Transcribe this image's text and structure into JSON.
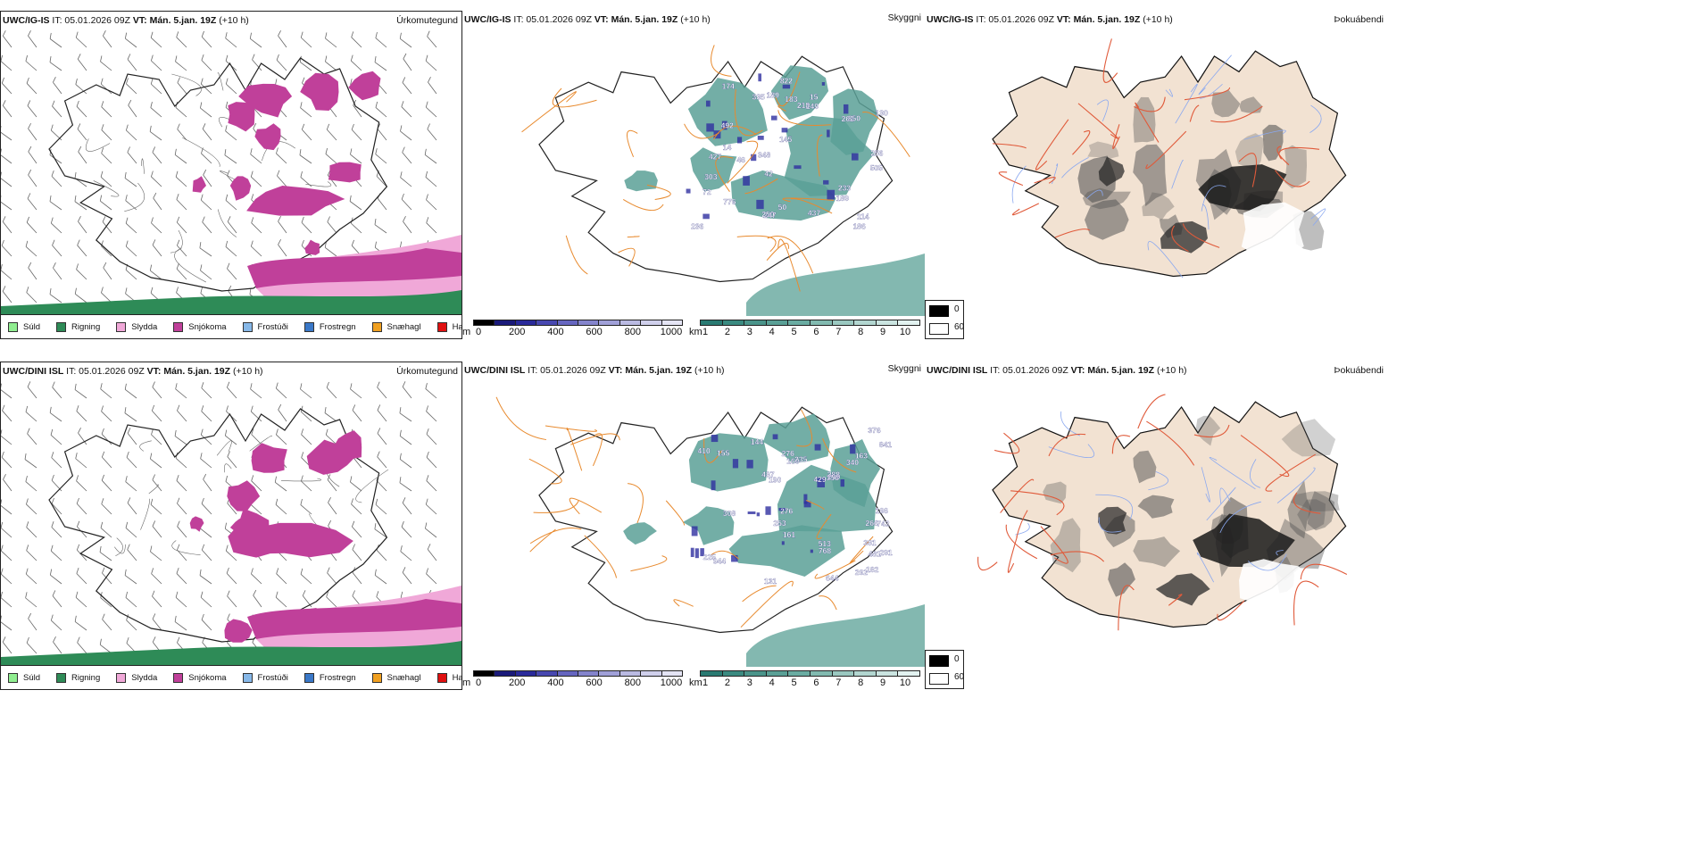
{
  "rows": [
    {
      "model": "UWC/IG-IS",
      "issue": "IT: 05.01.2026 09Z",
      "valid_label": "VT:",
      "valid": "Mán. 5.jan. 19Z",
      "lead": "(+10 h)",
      "visibility_numbers": [
        "492",
        "303",
        "50",
        "776",
        "249",
        "189",
        "72",
        "262",
        "174",
        "14",
        "130",
        "236",
        "850",
        "145",
        "437",
        "348",
        "15",
        "335",
        "427",
        "233",
        "822",
        "42",
        "46",
        "247",
        "218",
        "250",
        "189",
        "256",
        "183",
        "186",
        "114",
        "505"
      ]
    },
    {
      "model": "UWC/DINI ISL",
      "issue": "IT: 05.01.2026 09Z",
      "valid_label": "VT:",
      "valid": "Mán. 5.jan. 19Z",
      "lead": "(+10 h)",
      "visibility_numbers": [
        "376",
        "276",
        "513",
        "225",
        "841",
        "266",
        "429",
        "410",
        "161",
        "291",
        "742",
        "358",
        "253",
        "944",
        "481",
        "144",
        "340",
        "276",
        "166",
        "131",
        "768",
        "209",
        "308",
        "262",
        "381",
        "160",
        "437",
        "163",
        "288",
        "235",
        "182",
        "155",
        "644",
        "190"
      ]
    }
  ],
  "panel_titles": {
    "precip": "Úrkomutegund",
    "visibility": "Skyggni",
    "fog": "Þokuábendi"
  },
  "precip_legend": [
    {
      "label": "Súld",
      "color": "#90ee90"
    },
    {
      "label": "Rigning",
      "color": "#2e8b57"
    },
    {
      "label": "Slydda",
      "color": "#f0a8d8"
    },
    {
      "label": "Snjókoma",
      "color": "#c0409a"
    },
    {
      "label": "Frostúði",
      "color": "#87b8e8"
    },
    {
      "label": "Frostregn",
      "color": "#3a78c8"
    },
    {
      "label": "Snæhagl",
      "color": "#f0a020"
    },
    {
      "label": "Haglél",
      "color": "#e01010"
    }
  ],
  "cloud_base_bar": {
    "unit": "m",
    "ticks": [
      "0",
      "200",
      "400",
      "600",
      "800",
      "1000"
    ],
    "colors": [
      "#000000",
      "#1a1a7a",
      "#2a2a9a",
      "#4848b0",
      "#6666c0",
      "#8484cc",
      "#a0a0d8",
      "#babae2",
      "#d0d0ec",
      "#e4e4f4"
    ]
  },
  "visibility_bar": {
    "unit": "km",
    "ticks": [
      "1",
      "2",
      "3",
      "4",
      "5",
      "6",
      "7",
      "8",
      "9",
      "10"
    ],
    "colors": [
      "#2a7a72",
      "#3a8a80",
      "#4a948a",
      "#5aa096",
      "#6aaca2",
      "#82bab0",
      "#9ac8c0",
      "#b2d6d0",
      "#cae4e0",
      "#e2f2f0"
    ]
  },
  "fog_legend": {
    "black": "0",
    "white": "60"
  },
  "colors": {
    "snow": "#c0409a",
    "sleet": "#f0a8d8",
    "rain": "#2e8b57",
    "vis_fill": "#5aa096",
    "roads": "#e88a2e",
    "fog_land": "#f2e2d2",
    "fog_roads": "#e05a3a",
    "rivers": "#8aa8f0"
  }
}
